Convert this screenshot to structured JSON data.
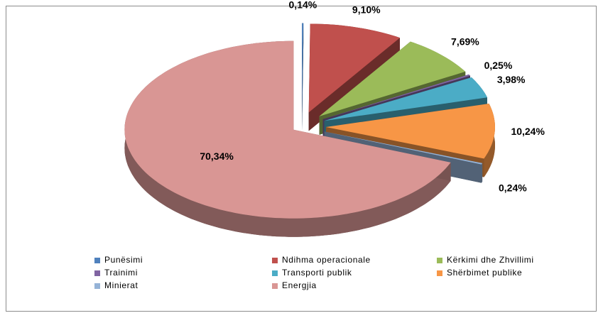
{
  "chart_data": {
    "type": "pie",
    "categories": [
      "Punësimi",
      "Ndihma operacionale",
      "Kërkimi dhe Zhvillimi",
      "Trainimi",
      "Transporti publik",
      "Shërbimet publike",
      "Minierat",
      "Energjia"
    ],
    "values": [
      0.14,
      9.1,
      7.69,
      0.25,
      3.98,
      10.24,
      0.24,
      70.34
    ],
    "value_labels": [
      "0,14%",
      "9,10%",
      "7,69%",
      "0,25%",
      "3,98%",
      "10,24%",
      "0,24%",
      "70,34%"
    ],
    "colors": [
      "#4f81bd",
      "#c0504d",
      "#9bbb59",
      "#8064a2",
      "#4bacc6",
      "#f79646",
      "#95b3d7",
      "#d99694"
    ],
    "legend": "bottom"
  }
}
